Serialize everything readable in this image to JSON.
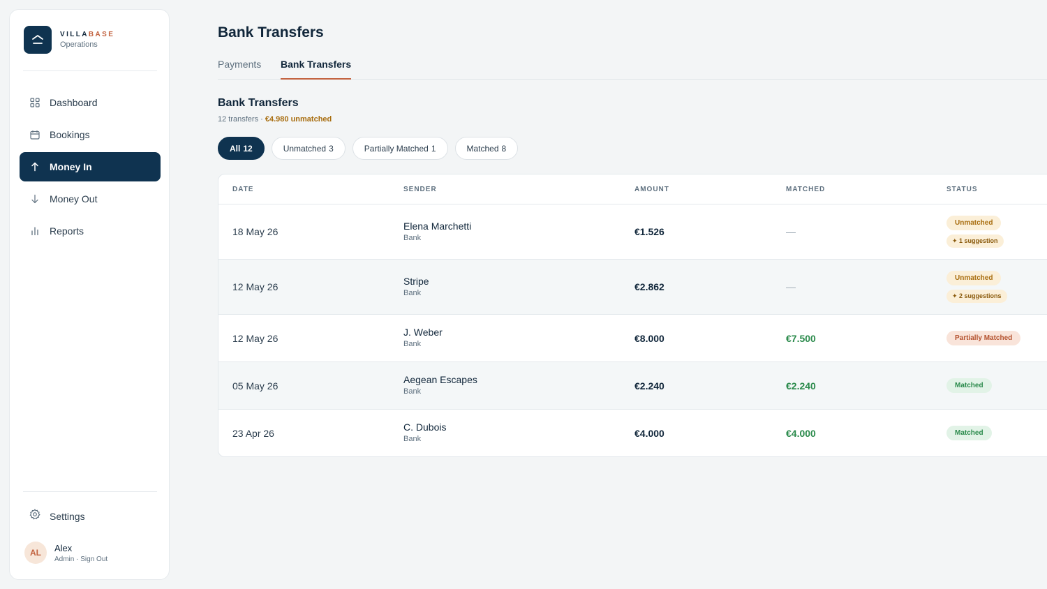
{
  "brand": {
    "name_part1": "VILLA",
    "name_part2": "BASE",
    "subtitle": "Operations"
  },
  "nav": {
    "items": [
      {
        "label": "Dashboard",
        "icon": "grid-icon"
      },
      {
        "label": "Bookings",
        "icon": "calendar-icon"
      },
      {
        "label": "Money In",
        "icon": "arrow-up-icon",
        "active": true
      },
      {
        "label": "Money Out",
        "icon": "arrow-down-icon"
      },
      {
        "label": "Reports",
        "icon": "bar-chart-icon"
      }
    ],
    "settings_label": "Settings"
  },
  "user": {
    "initials": "AL",
    "name": "Alex",
    "role": "Admin",
    "separator": "·",
    "signout": "Sign Out"
  },
  "page": {
    "title": "Bank Transfers"
  },
  "tabs": [
    {
      "label": "Payments"
    },
    {
      "label": "Bank Transfers",
      "active": true
    }
  ],
  "section": {
    "title": "Bank Transfers",
    "count_text": "12 transfers",
    "separator": "·",
    "unmatched_text": "€4.980 unmatched"
  },
  "filters": [
    {
      "label": "All",
      "count": "12",
      "active": true
    },
    {
      "label": "Unmatched",
      "count": "3"
    },
    {
      "label": "Partially Matched",
      "count": "1"
    },
    {
      "label": "Matched",
      "count": "8"
    }
  ],
  "table": {
    "headers": {
      "date": "DATE",
      "sender": "SENDER",
      "amount": "AMOUNT",
      "matched": "MATCHED",
      "status": "STATUS"
    },
    "rows": [
      {
        "date": "18 May 26",
        "sender": "Elena Marchetti",
        "source": "Bank",
        "amount": "€1.526",
        "matched": "—",
        "status": "Unmatched",
        "suggestion": "✦ 1 suggestion"
      },
      {
        "date": "12 May 26",
        "sender": "Stripe",
        "source": "Bank",
        "amount": "€2.862",
        "matched": "—",
        "status": "Unmatched",
        "suggestion": "✦ 2 suggestions"
      },
      {
        "date": "12 May 26",
        "sender": "J. Weber",
        "source": "Bank",
        "amount": "€8.000",
        "matched": "€7.500",
        "status": "Partially Matched"
      },
      {
        "date": "05 May 26",
        "sender": "Aegean Escapes",
        "source": "Bank",
        "amount": "€2.240",
        "matched": "€2.240",
        "status": "Matched"
      },
      {
        "date": "23 Apr 26",
        "sender": "C. Dubois",
        "source": "Bank",
        "amount": "€4.000",
        "matched": "€4.000",
        "status": "Matched"
      }
    ]
  },
  "colors": {
    "primary": "#0f3350",
    "accent": "#c2623f",
    "warning": "#a86d0f",
    "success": "#2a8a4b",
    "background": "#f3f5f6"
  }
}
